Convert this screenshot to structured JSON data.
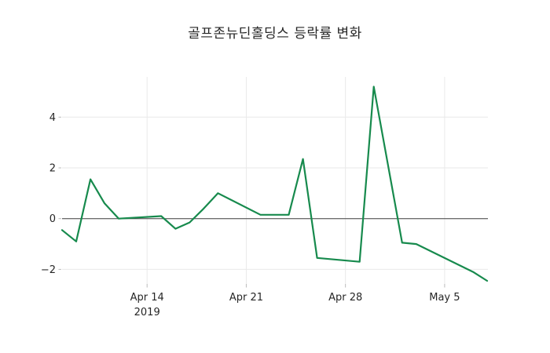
{
  "chart_data": {
    "type": "line",
    "title": "골프존뉴딘홀딩스 등락률 변화",
    "series_name": "골프존뉴딘홀딩스 등락률",
    "legend": "none",
    "grid": "on",
    "line_color": "#178a4d",
    "zero_line_color": "#404040",
    "grid_color": "#e9e9e9",
    "tick_mark_color": "#bbbbbb",
    "text_color": "#262626",
    "background_color": "#ffffff",
    "x_axis": {
      "start_date": "2019-04-08",
      "end_date": "2019-05-08",
      "ticks": [
        {
          "day": 6,
          "date": "2019-04-14",
          "label": "Apr 14",
          "sublabel": "2019"
        },
        {
          "day": 13,
          "date": "2019-04-21",
          "label": "Apr 21",
          "sublabel": ""
        },
        {
          "day": 20,
          "date": "2019-04-28",
          "label": "Apr 28",
          "sublabel": ""
        },
        {
          "day": 27,
          "date": "2019-05-05",
          "label": "May 5",
          "sublabel": ""
        }
      ]
    },
    "y_axis": {
      "ticks": [
        {
          "value": -2,
          "label": "−2"
        },
        {
          "value": 0,
          "label": "0"
        },
        {
          "value": 2,
          "label": "2"
        },
        {
          "value": 4,
          "label": "4"
        }
      ],
      "range": [
        -2.58,
        5.59
      ]
    },
    "points": [
      {
        "date": "2019-04-08",
        "day": 0,
        "value": -0.45
      },
      {
        "date": "2019-04-09",
        "day": 1,
        "value": -0.9
      },
      {
        "date": "2019-04-10",
        "day": 2,
        "value": 1.55
      },
      {
        "date": "2019-04-11",
        "day": 3,
        "value": 0.6
      },
      {
        "date": "2019-04-12",
        "day": 4,
        "value": 0.0
      },
      {
        "date": "2019-04-15",
        "day": 7,
        "value": 0.1
      },
      {
        "date": "2019-04-16",
        "day": 8,
        "value": -0.4
      },
      {
        "date": "2019-04-17",
        "day": 9,
        "value": -0.15
      },
      {
        "date": "2019-04-18",
        "day": 10,
        "value": 0.4
      },
      {
        "date": "2019-04-19",
        "day": 11,
        "value": 1.0
      },
      {
        "date": "2019-04-22",
        "day": 14,
        "value": 0.15
      },
      {
        "date": "2019-04-23",
        "day": 15,
        "value": 0.15
      },
      {
        "date": "2019-04-24",
        "day": 16,
        "value": 0.15
      },
      {
        "date": "2019-04-25",
        "day": 17,
        "value": 2.35
      },
      {
        "date": "2019-04-26",
        "day": 18,
        "value": -1.55
      },
      {
        "date": "2019-04-29",
        "day": 21,
        "value": -1.7
      },
      {
        "date": "2019-04-30",
        "day": 22,
        "value": 5.2
      },
      {
        "date": "2019-05-02",
        "day": 24,
        "value": -0.95
      },
      {
        "date": "2019-05-03",
        "day": 25,
        "value": -1.0
      },
      {
        "date": "2019-05-07",
        "day": 29,
        "value": -2.1
      },
      {
        "date": "2019-05-08",
        "day": 30,
        "value": -2.45
      }
    ]
  }
}
